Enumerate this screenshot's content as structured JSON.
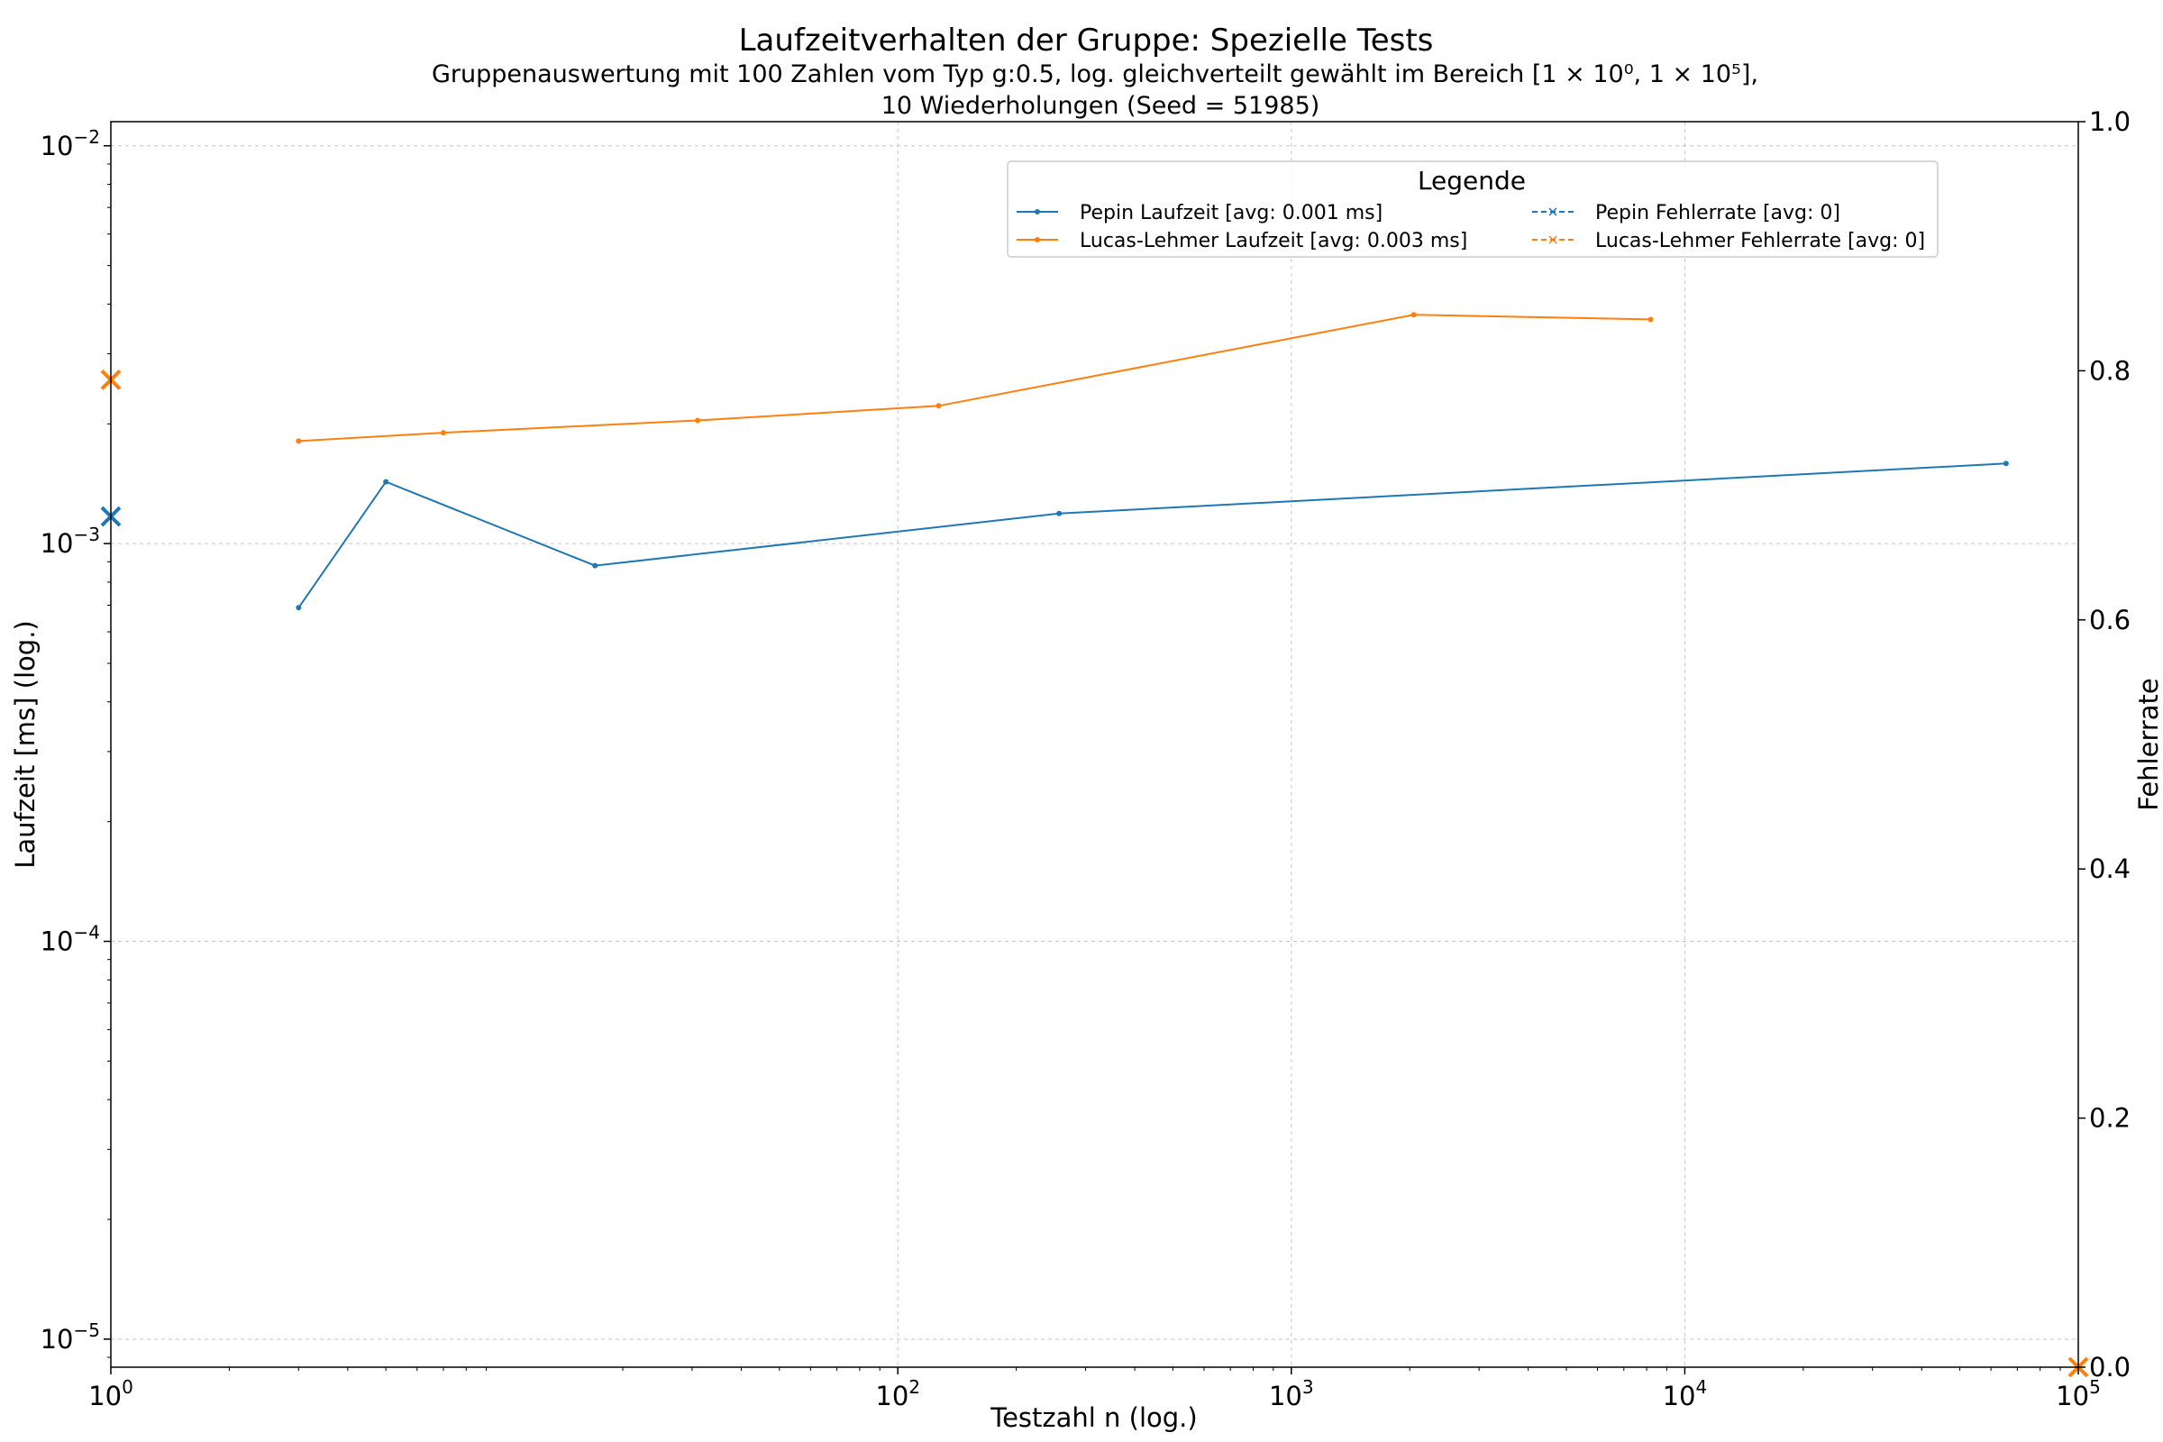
{
  "chart_data": {
    "type": "line",
    "title": "Laufzeitverhalten der Gruppe: Spezielle Tests",
    "subtitle_line1": "Gruppenauswertung mit 100 Zahlen vom Typ g:0.5, log. gleichverteilt gewählt im Bereich [1 × 10⁰, 1 × 10⁵],",
    "subtitle_line2": "10 Wiederholungen (Seed = 51985)",
    "xlabel": "Testzahl n (log.)",
    "ylabel": "Laufzeit [ms] (log.)",
    "y2label": "Fehlerrate",
    "x_scale": "log",
    "y_scale": "log",
    "xlim": [
      1,
      100000
    ],
    "ylim": [
      8.5e-06,
      0.0115
    ],
    "y2lim": [
      0,
      1
    ],
    "x_ticks": [
      {
        "value": 1,
        "base": "10",
        "exp": "0"
      },
      {
        "value": 100,
        "base": "10",
        "exp": "2"
      },
      {
        "value": 1000,
        "base": "10",
        "exp": "3"
      },
      {
        "value": 10000,
        "base": "10",
        "exp": "4"
      },
      {
        "value": 100000,
        "base": "10",
        "exp": "5"
      }
    ],
    "y_ticks": [
      {
        "value": 0.01,
        "base": "10",
        "exp": "−2"
      },
      {
        "value": 0.001,
        "base": "10",
        "exp": "−3"
      },
      {
        "value": 0.0001,
        "base": "10",
        "exp": "−4"
      },
      {
        "value": 1e-05,
        "base": "10",
        "exp": "−5"
      }
    ],
    "y2_ticks": [
      "0.0",
      "0.2",
      "0.4",
      "0.6",
      "0.8",
      "1.0"
    ],
    "grid": true,
    "legend": {
      "title": "Legende",
      "placement": "top-right",
      "columns": 2
    },
    "series": [
      {
        "name": "Pepin Laufzeit [avg: 0.001 ms]",
        "color": "#1f77b4",
        "axis": "left",
        "style": "solid-dot",
        "x": [
          3,
          5,
          17,
          257,
          65537
        ],
        "y": [
          0.00069,
          0.00143,
          0.00088,
          0.00119,
          0.00159
        ]
      },
      {
        "name": "Lucas-Lehmer Laufzeit [avg: 0.003 ms]",
        "color": "#ff7f0e",
        "axis": "left",
        "style": "solid-dot",
        "x": [
          3,
          7,
          31,
          127,
          2047,
          8191
        ],
        "y": [
          0.00181,
          0.0019,
          0.00204,
          0.00222,
          0.00376,
          0.00366
        ]
      },
      {
        "name": "Pepin Fehlerrate [avg: 0]",
        "color": "#1f77b4",
        "axis": "right",
        "style": "dashed-x"
      },
      {
        "name": "Lucas-Lehmer Fehlerrate [avg: 0]",
        "color": "#ff7f0e",
        "axis": "right",
        "style": "dashed-x"
      }
    ],
    "avg_markers": [
      {
        "series": "Pepin Laufzeit [avg: 0.001 ms]",
        "color": "#1f77b4",
        "axis": "left",
        "at": "x-min",
        "y": 0.00117
      },
      {
        "series": "Lucas-Lehmer Laufzeit [avg: 0.003 ms]",
        "color": "#ff7f0e",
        "axis": "left",
        "at": "x-min",
        "y": 0.00258
      },
      {
        "series": "Fehlerrate [avg: 0]",
        "color": "#ff7f0e",
        "axis": "right",
        "at": "x-max",
        "y": 0
      }
    ]
  }
}
